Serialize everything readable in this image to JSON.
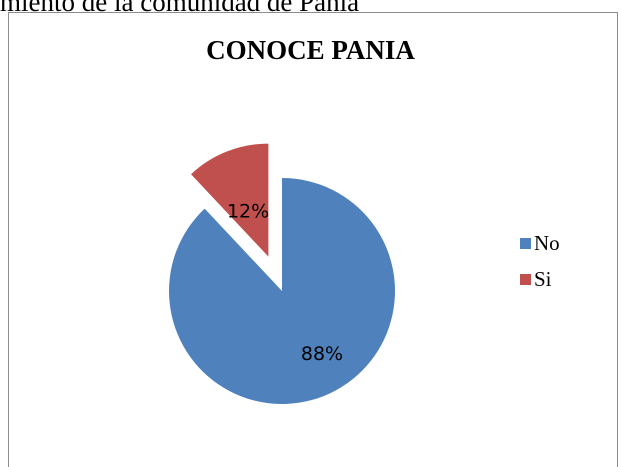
{
  "caption": "miento de la comunidad de Pania",
  "chart_data": {
    "type": "pie",
    "title": "CONOCE PANIA",
    "categories": [
      "No",
      "Si"
    ],
    "values": [
      88,
      12
    ],
    "value_labels": [
      "88%",
      "12%"
    ],
    "colors": [
      "#4F81BD",
      "#C0504D"
    ],
    "exploded": [
      "Si"
    ],
    "legend_position": "right"
  }
}
